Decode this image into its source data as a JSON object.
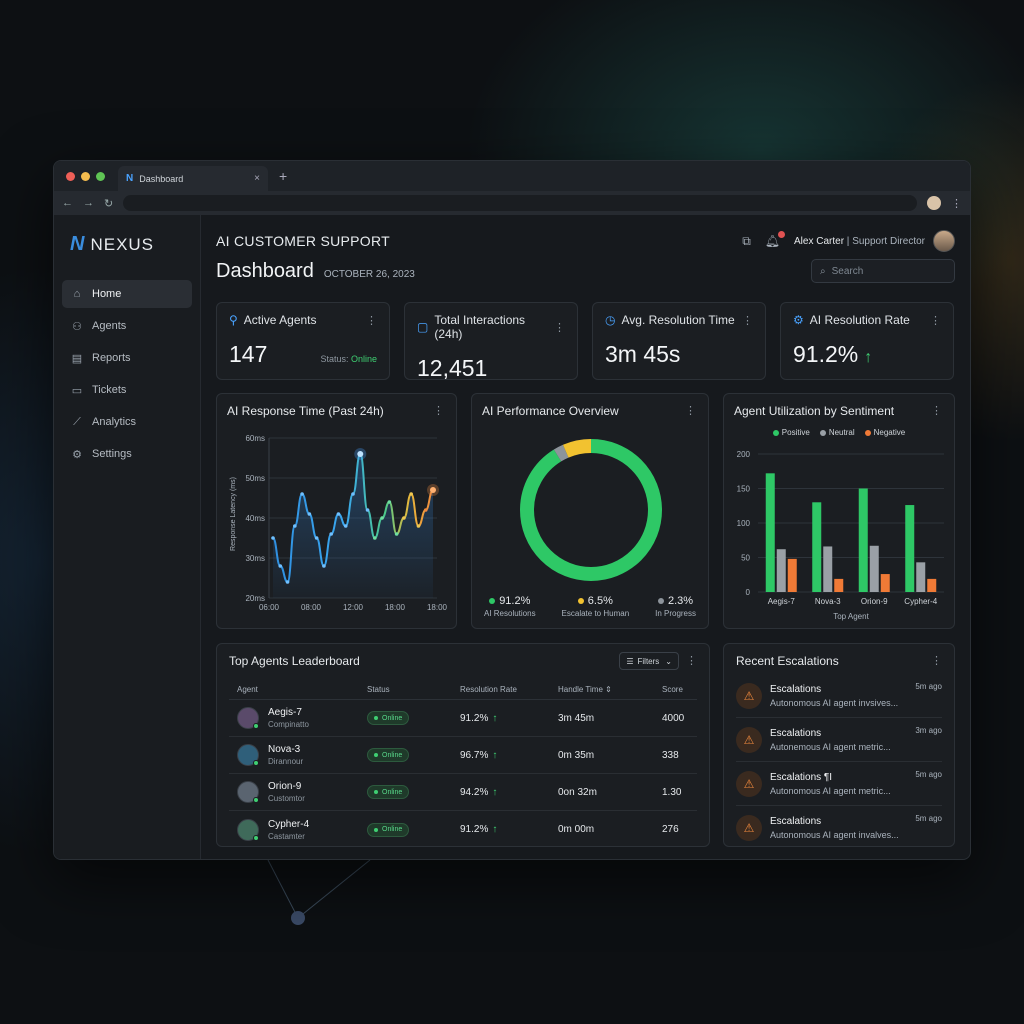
{
  "browser": {
    "tab_title": "Dashboard",
    "tab_close": "×",
    "new_tab": "+",
    "back": "←",
    "forward": "→",
    "reload": "↻",
    "menu": "⋮"
  },
  "brand": {
    "logo_letter": "N",
    "name": "NEXUS"
  },
  "sidebar": {
    "items": [
      {
        "label": "Home",
        "icon": "home-icon",
        "glyph": "⌂",
        "active": true
      },
      {
        "label": "Agents",
        "icon": "users-icon",
        "glyph": "👥"
      },
      {
        "label": "Reports",
        "icon": "document-icon",
        "glyph": "▤"
      },
      {
        "label": "Tickets",
        "icon": "ticket-icon",
        "glyph": "▭"
      },
      {
        "label": "Analytics",
        "icon": "analytics-icon",
        "glyph": "⟋"
      },
      {
        "label": "Settings",
        "icon": "gear-icon",
        "glyph": "⚙"
      }
    ]
  },
  "header": {
    "app_title": "AI CUSTOMER SUPPORT",
    "page_title": "Dashboard",
    "date": "OCTOBER 26, 2023",
    "user_name": "Alex Carter",
    "user_separator": " | ",
    "user_role": "Support Director",
    "search_placeholder": "Search",
    "more": "⋮"
  },
  "kpis": [
    {
      "title": "Active Agents",
      "value": "147",
      "status_label": "Status: ",
      "status_value": "Online",
      "icon": "user-icon"
    },
    {
      "title": "Total Interactions (24h)",
      "value": "12,451",
      "icon": "chat-icon"
    },
    {
      "title": "Avg. Resolution Time",
      "value": "3m 45s",
      "icon": "clock-icon"
    },
    {
      "title": "AI Resolution Rate",
      "value": "91.2%",
      "trend": "↑",
      "icon": "gear-icon"
    }
  ],
  "response_chart": {
    "title": "AI Response Time (Past 24h)",
    "ylabel": "Response Latency (ms)",
    "y_ticks": [
      "60ms",
      "50ms",
      "40ms",
      "30ms",
      "20ms"
    ],
    "x_ticks": [
      "06:00",
      "08:00",
      "12:00",
      "18:00",
      "18:00"
    ]
  },
  "donut": {
    "title": "AI Performance Overview",
    "segments": [
      {
        "value": "91.2%",
        "label": "AI Resolutions",
        "pct": 91.2,
        "color": "#2ec866"
      },
      {
        "value": "6.5%",
        "label": "Escalate to Human",
        "pct": 6.5,
        "color": "#f2c230"
      },
      {
        "value": "2.3%",
        "label": "In Progress",
        "pct": 2.3,
        "color": "#8d949b"
      }
    ]
  },
  "sentiment_chart": {
    "title": "Agent Utilization by Sentiment",
    "xlabel": "Top Agent",
    "y_ticks": [
      "200",
      "150",
      "100",
      "50",
      "0"
    ],
    "legend": [
      {
        "name": "Positive",
        "color": "#2ec866"
      },
      {
        "name": "Neutral",
        "color": "#9aa0a6"
      },
      {
        "name": "Negative",
        "color": "#f07a36"
      }
    ]
  },
  "chart_data": [
    {
      "type": "line",
      "title": "AI Response Time (Past 24h)",
      "ylabel": "Response Latency (ms)",
      "ylim": [
        20,
        60
      ],
      "y": [
        35,
        28,
        24,
        38,
        46,
        41,
        35,
        28,
        36,
        41,
        38,
        46,
        56,
        42,
        35,
        40,
        44,
        36,
        40,
        46,
        38,
        42,
        47
      ]
    },
    {
      "type": "pie",
      "title": "AI Performance Overview",
      "categories": [
        "AI Resolutions",
        "Escalate to Human",
        "In Progress"
      ],
      "values": [
        91.2,
        6.5,
        2.3
      ]
    },
    {
      "type": "bar",
      "title": "Agent Utilization by Sentiment",
      "xlabel": "Top Agent",
      "categories": [
        "Aegis-7",
        "Nova-3",
        "Orion-9",
        "Cypher-4"
      ],
      "ylim": [
        0,
        200
      ],
      "series": [
        {
          "name": "Positive",
          "values": [
            172,
            130,
            150,
            126
          ]
        },
        {
          "name": "Neutral",
          "values": [
            62,
            66,
            67,
            43
          ]
        },
        {
          "name": "Negative",
          "values": [
            48,
            19,
            26,
            19
          ]
        }
      ]
    }
  ],
  "leaderboard": {
    "title": "Top Agents Leaderboard",
    "filters_label": "Filters",
    "columns": [
      "Agent",
      "Status",
      "Resolution Rate",
      "Handle Time ⇕",
      "Score"
    ],
    "rows": [
      {
        "name": "Aegis-7",
        "sub": "Compinatto",
        "status": "Online",
        "rate": "91.2%",
        "time": "3m 45m",
        "score": "4000",
        "avatar": "#5a4a6a"
      },
      {
        "name": "Nova-3",
        "sub": "Dirannour",
        "status": "Online",
        "rate": "96.7%",
        "time": "0m 35m",
        "score": "338",
        "avatar": "#2f5f7a"
      },
      {
        "name": "Orion-9",
        "sub": "Customtor",
        "status": "Online",
        "rate": "94.2%",
        "time": "0on 32m",
        "score": "1.30",
        "avatar": "#5a6470"
      },
      {
        "name": "Cypher-4",
        "sub": "Castamter",
        "status": "Online",
        "rate": "91.2%",
        "time": "0m 00m",
        "score": "276",
        "avatar": "#3f6a5a"
      }
    ]
  },
  "escalations": {
    "title": "Recent Escalations",
    "items": [
      {
        "title": "Escalations",
        "desc": "Autonomous AI agent invsives...",
        "time": "5m ago"
      },
      {
        "title": "Escalations",
        "desc": "Autonemous AI agent metric...",
        "time": "3m ago"
      },
      {
        "title": "Escalations ¶I",
        "desc": "Autonomous AI agent metric...",
        "time": "5m ago"
      },
      {
        "title": "Escalations",
        "desc": "Autonomous AI agent invalves...",
        "time": "5m ago"
      }
    ]
  }
}
